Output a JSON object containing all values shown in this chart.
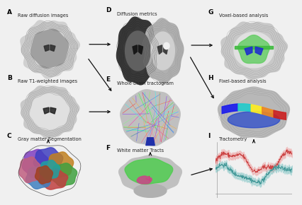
{
  "panels": [
    "A",
    "B",
    "C",
    "D",
    "E",
    "F",
    "G",
    "H",
    "I"
  ],
  "labels": {
    "A": "Raw diffusion images",
    "B": "Raw T1-weighted images",
    "C": "Gray matter Segmentation",
    "D": "Diffusion metrics",
    "E": "Whole brain tractogram",
    "F": "White matter Tracts",
    "G": "Voxel-based analysis",
    "H": "Fixel-based analysis",
    "I": "Tractometry"
  },
  "background_color": "#f0f0f0",
  "label_fontsize": 4.8,
  "panel_label_fontsize": 6.5,
  "arrow_color": "#111111"
}
